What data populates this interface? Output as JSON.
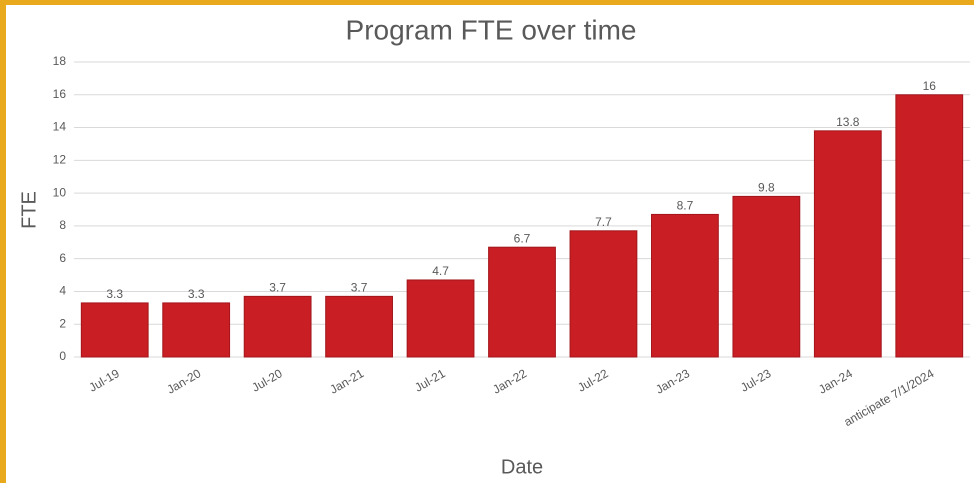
{
  "chart_data": {
    "type": "bar",
    "title": "Program FTE over time",
    "xlabel": "Date",
    "ylabel": "FTE",
    "categories": [
      "Jul-19",
      "Jan-20",
      "Jul-20",
      "Jan-21",
      "Jul-21",
      "Jan-22",
      "Jul-22",
      "Jan-23",
      "Jul-23",
      "Jan-24",
      "anticipate 7/1/2024"
    ],
    "values": [
      3.3,
      3.3,
      3.7,
      3.7,
      4.7,
      6.7,
      7.7,
      8.7,
      9.8,
      13.8,
      16
    ],
    "color": "#c81e24",
    "ylim": [
      0,
      18
    ],
    "yticks": [
      0,
      2,
      4,
      6,
      8,
      10,
      12,
      14,
      16,
      18
    ],
    "grid": true
  }
}
